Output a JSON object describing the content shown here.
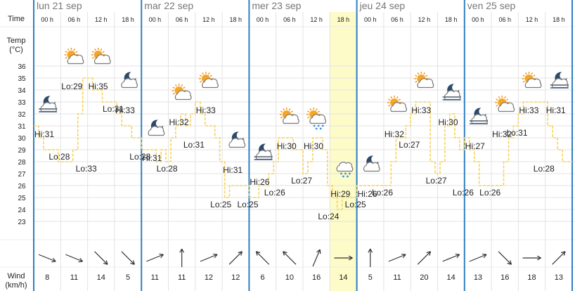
{
  "row_labels": {
    "time": "Time",
    "temp": "Temp",
    "temp_unit": "(°C)",
    "wind": "Wind",
    "wind_unit": "(km/h)"
  },
  "y_axis_ticks": [
    "36",
    "35",
    "34",
    "33",
    "32",
    "31",
    "30",
    "29",
    "28",
    "27",
    "26",
    "25",
    "24",
    "23"
  ],
  "days": [
    {
      "label": "lun 21 sep"
    },
    {
      "label": "mar 22 sep"
    },
    {
      "label": "mer 23 sep"
    },
    {
      "label": "jeu 24 sep"
    },
    {
      "label": "ven 25 sep"
    }
  ],
  "slots": [
    {
      "time": "00 h",
      "icon": "moon-cloud-fog-icon",
      "hilo": "Hi:31",
      "wind": "8",
      "dir": "east-southeast"
    },
    {
      "time": "06 h",
      "icon": "sun-cloud-icon",
      "hilo": "Lo:29",
      "wind": "11",
      "dir": "east-southeast"
    },
    {
      "time": "12 h",
      "icon": "sun-cloud-icon",
      "hilo": "Hi:35",
      "wind": "14",
      "dir": "southeast"
    },
    {
      "time": "18 h",
      "icon": "moon-cloud-icon",
      "hilo": "Hi:33",
      "wind": "5",
      "dir": "southeast"
    },
    {
      "time": "00 h",
      "icon": "moon-cloud-icon",
      "hilo": "Hi:31",
      "wind": "11",
      "dir": "east-northeast"
    },
    {
      "time": "06 h",
      "icon": "sun-cloud-icon",
      "hilo": "Hi:32",
      "wind": "11",
      "dir": "north"
    },
    {
      "time": "12 h",
      "icon": "sun-cloud-icon",
      "hilo": "Hi:33",
      "wind": "12",
      "dir": "east-northeast"
    },
    {
      "time": "18 h",
      "icon": "moon-cloud-icon",
      "hilo": "Hi:31",
      "wind": "12",
      "dir": "northeast"
    },
    {
      "time": "00 h",
      "icon": "moon-cloud-fog-icon",
      "hilo": "Hi:26",
      "wind": "6",
      "dir": "northwest"
    },
    {
      "time": "06 h",
      "icon": "sun-cloud-icon",
      "hilo": "Hi:30",
      "wind": "10",
      "dir": "northwest"
    },
    {
      "time": "12 h",
      "icon": "sun-cloud-rain-icon",
      "hilo": "Hi:30",
      "wind": "16",
      "dir": "north-northeast"
    },
    {
      "time": "18 h",
      "icon": "cloud-rain-icon",
      "hilo": "Hi:29",
      "wind": "14",
      "dir": "east"
    },
    {
      "time": "00 h",
      "icon": "moon-cloud-icon",
      "hilo": "Hi:26",
      "wind": "5",
      "dir": "north"
    },
    {
      "time": "06 h",
      "icon": "sun-cloud-icon",
      "hilo": "Hi:32",
      "wind": "11",
      "dir": "east-northeast"
    },
    {
      "time": "12 h",
      "icon": "sun-cloud-icon",
      "hilo": "Hi:33",
      "wind": "20",
      "dir": "northeast"
    },
    {
      "time": "18 h",
      "icon": "moon-cloud-fog-icon",
      "hilo": "Hi:30",
      "wind": "14",
      "dir": "east-northeast"
    },
    {
      "time": "00 h",
      "icon": "moon-cloud-fog-icon",
      "hilo": "Hi:27",
      "wind": "13",
      "dir": "east-northeast"
    },
    {
      "time": "06 h",
      "icon": "sun-cloud-icon",
      "hilo": "Hi:32",
      "wind": "16",
      "dir": "southeast"
    },
    {
      "time": "12 h",
      "icon": "sun-cloud-icon",
      "hilo": "Hi:33",
      "wind": "18",
      "dir": "east"
    },
    {
      "time": "18 h",
      "icon": "moon-cloud-fog-icon",
      "hilo": "Hi:31",
      "wind": "13",
      "dir": "northeast"
    }
  ],
  "low_labels": [
    "Lo:28",
    "Lo:33",
    "Lo:31",
    "Lo:28",
    "Lo:28",
    "Lo:31",
    "Lo:25",
    "Lo:25",
    "Lo:26",
    "Lo:27",
    "Lo:24",
    "Lo:25",
    "Lo:26",
    "Lo:27",
    "Lo:27",
    "Lo:26",
    "Lo:26",
    "Lo:31",
    "Lo:28"
  ],
  "temperature_series": [
    31,
    30,
    29,
    29,
    29,
    28,
    28,
    28,
    29,
    32,
    35,
    35,
    34,
    34,
    33,
    33,
    33,
    32,
    31,
    31,
    30,
    30,
    29,
    29,
    29,
    28,
    29,
    28,
    30,
    31,
    32,
    31,
    32,
    33,
    32,
    31,
    31,
    30,
    28,
    25,
    26,
    26,
    26,
    26,
    25,
    25,
    26,
    26,
    27,
    28,
    30,
    30,
    30,
    29,
    29,
    27,
    28,
    30,
    30,
    29,
    26,
    25,
    24,
    25,
    25,
    25,
    26,
    26,
    26,
    26,
    26,
    26,
    26,
    28,
    30,
    30,
    31,
    32,
    33,
    33,
    33,
    28,
    27,
    28,
    31,
    32,
    30,
    29,
    30,
    29,
    28,
    26,
    26,
    26,
    26,
    26,
    28,
    30,
    31,
    32,
    33,
    33,
    33,
    33,
    33,
    31,
    30,
    29,
    28,
    28
  ],
  "highlight_slot": 11,
  "colors": {
    "day_divider": "#2f7fc1",
    "grid": "#e3e3e3",
    "temperature_line": "#f7d25a",
    "highlight": "#fdfbc8",
    "text": "#222222",
    "day_header": "#777777"
  }
}
